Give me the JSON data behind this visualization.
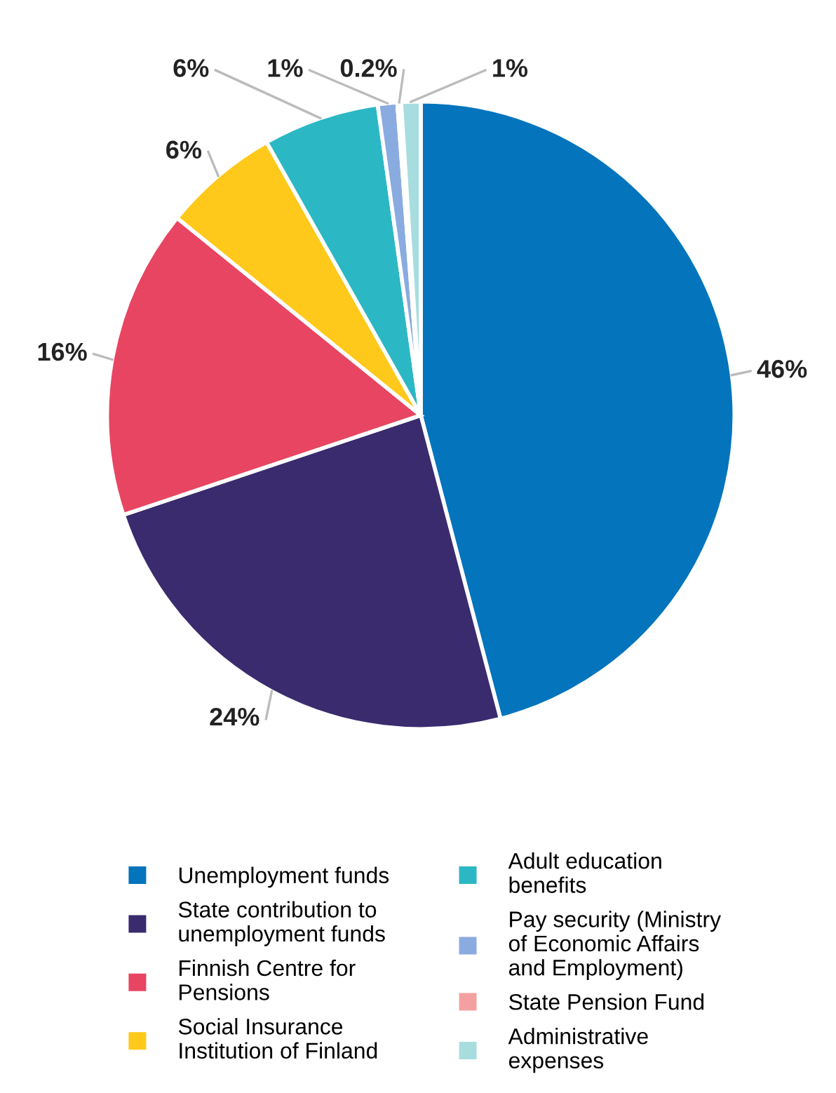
{
  "chart_data": {
    "type": "pie",
    "categories": [
      "Unemployment funds",
      "State contribution to\nunemployment funds",
      "Finnish Centre for\nPensions",
      "Social Insurance\nInstitution of Finland",
      "Adult education\nbenefits",
      "Pay security (Ministry\nof Economic Affairs\nand Employment)",
      "State Pension Fund",
      "Administrative\nexpenses"
    ],
    "values": [
      46,
      24,
      16,
      6,
      6,
      1,
      0.2,
      1
    ],
    "value_labels": [
      "46%",
      "24%",
      "16%",
      "6%",
      "6%",
      "1%",
      "0.2%",
      "1%"
    ],
    "colors": [
      "#0474bc",
      "#3a2b6e",
      "#e84562",
      "#fec91b",
      "#2bb8c4",
      "#8aabe0",
      "#f4a0a0",
      "#a8dde0"
    ],
    "legend": "bottom"
  }
}
